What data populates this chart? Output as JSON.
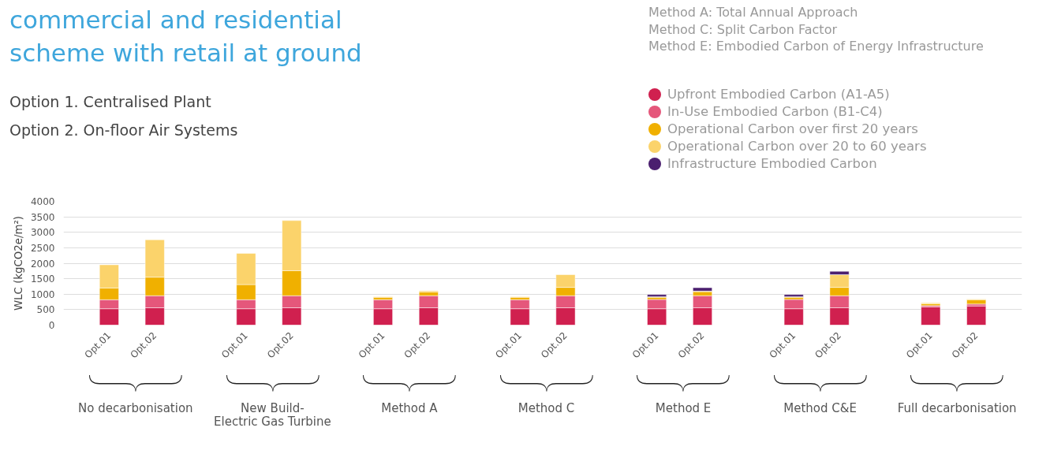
{
  "chart_data": {
    "type": "bar",
    "stacked": true,
    "title": "commercial and residential scheme with retail at ground",
    "subtitle": "Option 1. Centralised Plant\nOption 2. On-floor Air Systems",
    "ylabel": "WLC (kgCO2e/m²)",
    "categories": [
      "Opt.01",
      "Opt.02",
      "Opt.01",
      "Opt.02",
      "Opt.01",
      "Opt.02",
      "Opt.01",
      "Opt.02",
      "Opt.01",
      "Opt.02",
      "Opt.01",
      "Opt.02",
      "Opt.01",
      "Opt.02"
    ],
    "series": [
      {
        "name": "Upfront Embodied Carbon (A1-A5)",
        "color": "#d0204f",
        "values": [
          530,
          560,
          530,
          560,
          530,
          560,
          530,
          560,
          530,
          560,
          530,
          560,
          590,
          620
        ]
      },
      {
        "name": "In-Use Embodied Carbon (B1-C4)",
        "color": "#e5577b",
        "values": [
          290,
          390,
          290,
          390,
          290,
          390,
          290,
          390,
          300,
          390,
          300,
          390,
          40,
          60
        ]
      },
      {
        "name": "Operational Carbon over first 20 years",
        "color": "#f0b000",
        "values": [
          380,
          600,
          490,
          810,
          80,
          120,
          80,
          270,
          70,
          130,
          70,
          270,
          60,
          140
        ]
      },
      {
        "name": "Operational Carbon over 20 to 60 years",
        "color": "#fbd36b",
        "values": [
          750,
          1210,
          1010,
          1620,
          20,
          40,
          20,
          410,
          20,
          20,
          20,
          410,
          30,
          20
        ]
      },
      {
        "name": "Infrastructure Embodied Carbon",
        "color": "#4b1f6f",
        "values": [
          null,
          null,
          null,
          null,
          null,
          null,
          null,
          null,
          70,
          110,
          70,
          110,
          null,
          null
        ]
      }
    ],
    "ylim": [
      0,
      4000
    ],
    "yticks": [
      0,
      500,
      1000,
      1500,
      2000,
      2500,
      3000,
      3500,
      4000
    ],
    "grid": "y",
    "legend": "top right",
    "annotations": [
      "Method A: Total Annual Approach",
      "Method C: Split Carbon Factor",
      "Method E: Embodied Carbon of Energy Infrastructure",
      "No decarbonisation",
      "New Build-\nElectric Gas Turbine",
      "Method A",
      "Method C",
      "Method E",
      "Method C&E",
      "Full decarbonisation"
    ]
  }
}
